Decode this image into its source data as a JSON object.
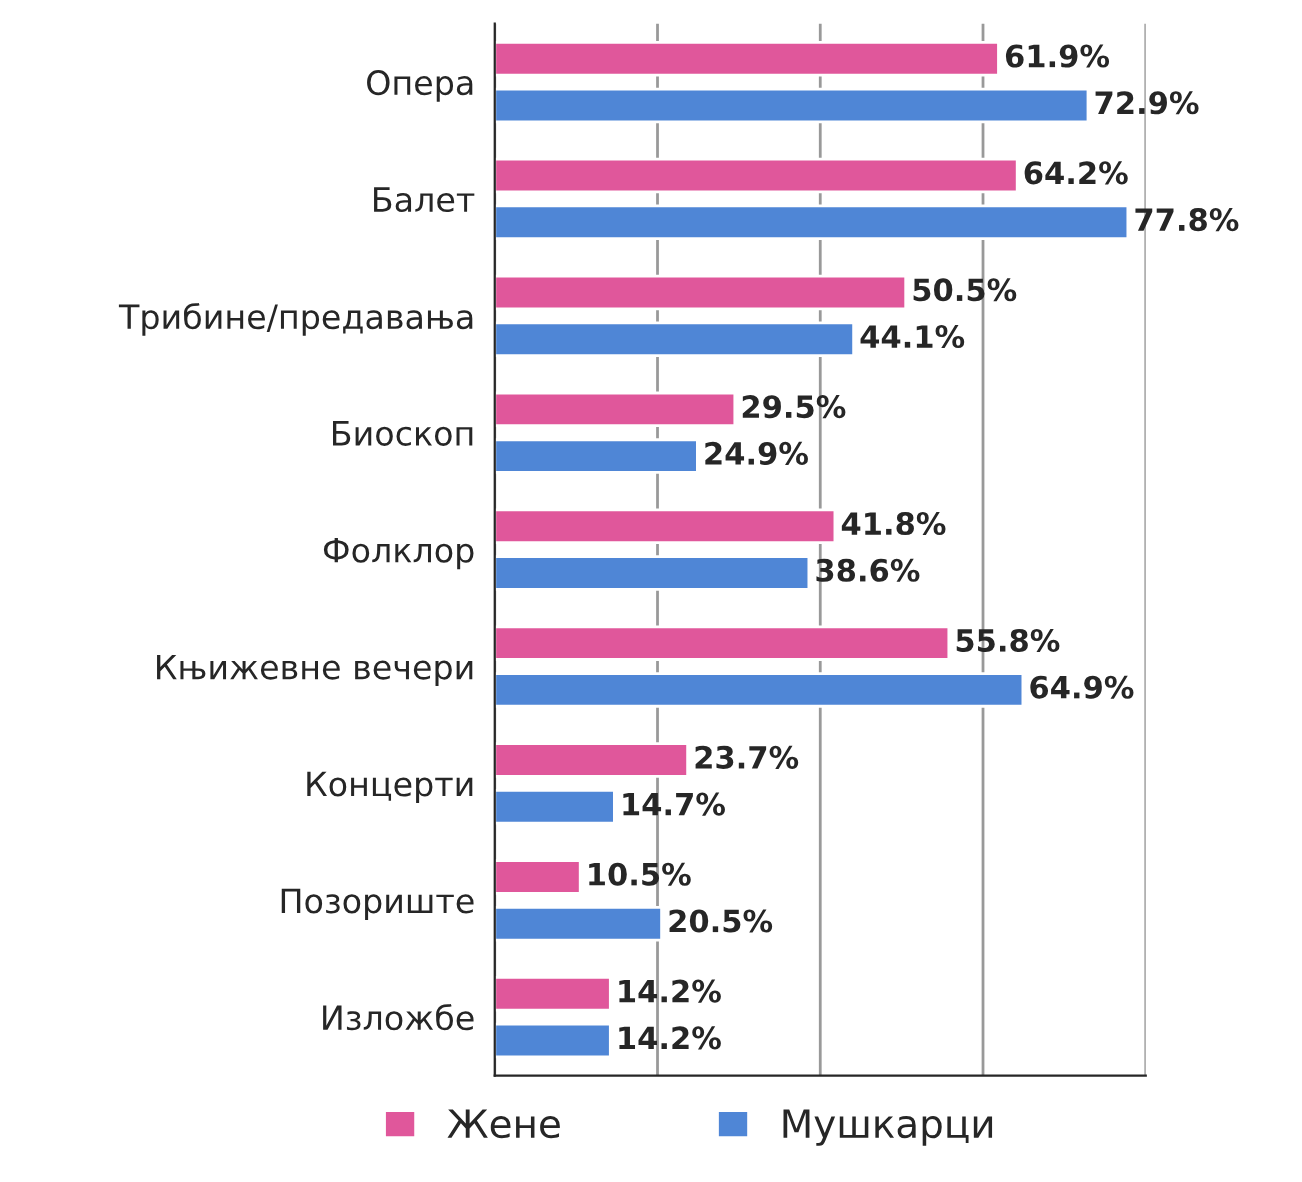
{
  "chart_data": {
    "type": "bar",
    "orientation": "horizontal",
    "categories": [
      "Опера",
      "Балет",
      "Трибине/предавања",
      "Биоскоп",
      "Фолклор",
      "Књижевне вечери",
      "Концерти",
      "Позориште",
      "Изложбе"
    ],
    "series": [
      {
        "name": "Жене",
        "color": "#e0579b",
        "values": [
          61.9,
          64.2,
          50.5,
          29.5,
          41.8,
          55.8,
          23.7,
          10.5,
          14.2
        ],
        "value_labels": [
          "61.9%",
          "64.2%",
          "50.5%",
          "29.5%",
          "41.8%",
          "55.8%",
          "23.7%",
          "10.5%",
          "14.2%"
        ]
      },
      {
        "name": "Мушкарци",
        "color": "#4f86d6",
        "values": [
          72.9,
          77.8,
          44.1,
          24.9,
          38.6,
          64.9,
          14.7,
          20.5,
          14.2
        ],
        "value_labels": [
          "72.9%",
          "77.8%",
          "44.1%",
          "24.9%",
          "38.6%",
          "64.9%",
          "14.7%",
          "20.5%",
          "14.2%"
        ]
      }
    ],
    "xlim": [
      0,
      80
    ],
    "xticks": [
      {
        "value": 0,
        "label": null
      },
      {
        "value": 20,
        "label": null
      },
      {
        "value": 40,
        "label": null
      },
      {
        "value": 60,
        "label": null
      },
      {
        "value": 80,
        "label": null
      }
    ],
    "tick_labels": "y",
    "grid": "x",
    "legend": "bottom"
  }
}
